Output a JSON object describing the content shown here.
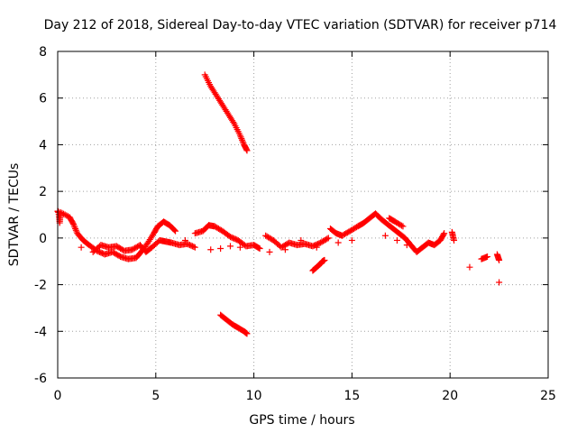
{
  "chart_data": {
    "type": "scatter",
    "title": "Day 212 of 2018, Sidereal Day-to-day VTEC variation (SDTVAR) for receiver p714",
    "xlabel": "GPS time / hours",
    "ylabel": "SDTVAR / TECUs",
    "xlim": [
      0,
      25
    ],
    "ylim": [
      -6,
      8
    ],
    "xticks": [
      0,
      5,
      10,
      15,
      20,
      25
    ],
    "yticks": [
      -6,
      -4,
      -2,
      0,
      2,
      4,
      6,
      8
    ],
    "grid": true,
    "marker": "+",
    "series": [
      {
        "name": "SDTVAR",
        "color": "#ff0000",
        "points": [
          [
            0.0,
            1.15
          ],
          [
            0.05,
            1.1
          ],
          [
            0.1,
            0.65
          ],
          [
            0.15,
            1.1
          ],
          [
            0.6,
            0.9
          ],
          [
            0.8,
            0.6
          ],
          [
            1.0,
            0.2
          ],
          [
            1.3,
            -0.1
          ],
          [
            1.6,
            -0.3
          ],
          [
            2.0,
            -0.55
          ],
          [
            2.4,
            -0.7
          ],
          [
            2.8,
            -0.6
          ],
          [
            3.2,
            -0.8
          ],
          [
            3.6,
            -0.9
          ],
          [
            4.0,
            -0.85
          ],
          [
            4.3,
            -0.55
          ],
          [
            4.6,
            -0.2
          ],
          [
            4.9,
            0.2
          ],
          [
            5.1,
            0.5
          ],
          [
            5.4,
            0.7
          ],
          [
            5.7,
            0.55
          ],
          [
            6.0,
            0.3
          ],
          [
            1.2,
            -0.4
          ],
          [
            1.8,
            -0.6
          ],
          [
            2.2,
            -0.3
          ],
          [
            2.6,
            -0.4
          ],
          [
            3.0,
            -0.35
          ],
          [
            3.4,
            -0.55
          ],
          [
            3.8,
            -0.5
          ],
          [
            4.2,
            -0.3
          ],
          [
            4.5,
            -0.6
          ],
          [
            4.8,
            -0.4
          ],
          [
            5.2,
            -0.1
          ],
          [
            5.5,
            -0.15
          ],
          [
            5.8,
            -0.2
          ],
          [
            6.2,
            -0.3
          ],
          [
            6.6,
            -0.25
          ],
          [
            7.0,
            -0.4
          ],
          [
            6.5,
            -0.1
          ],
          [
            7.0,
            0.2
          ],
          [
            7.4,
            0.3
          ],
          [
            7.7,
            0.55
          ],
          [
            8.0,
            0.5
          ],
          [
            8.4,
            0.3
          ],
          [
            8.8,
            0.05
          ],
          [
            9.2,
            -0.1
          ],
          [
            9.6,
            -0.35
          ],
          [
            10.0,
            -0.3
          ],
          [
            10.3,
            -0.45
          ],
          [
            7.8,
            -0.5
          ],
          [
            8.3,
            -0.45
          ],
          [
            8.8,
            -0.35
          ],
          [
            9.3,
            -0.4
          ],
          [
            10.6,
            0.1
          ],
          [
            11.0,
            -0.1
          ],
          [
            11.4,
            -0.4
          ],
          [
            11.8,
            -0.2
          ],
          [
            12.2,
            -0.3
          ],
          [
            12.6,
            -0.25
          ],
          [
            13.0,
            -0.35
          ],
          [
            13.4,
            -0.2
          ],
          [
            13.8,
            0.0
          ],
          [
            10.8,
            -0.6
          ],
          [
            11.6,
            -0.5
          ],
          [
            12.4,
            -0.1
          ],
          [
            13.2,
            -0.4
          ],
          [
            13.9,
            0.4
          ],
          [
            14.2,
            0.2
          ],
          [
            14.5,
            0.1
          ],
          [
            14.9,
            0.3
          ],
          [
            15.3,
            0.5
          ],
          [
            15.6,
            0.65
          ],
          [
            15.9,
            0.85
          ],
          [
            16.2,
            1.05
          ],
          [
            16.5,
            0.8
          ],
          [
            16.8,
            0.6
          ],
          [
            17.1,
            0.4
          ],
          [
            17.4,
            0.2
          ],
          [
            17.7,
            0.0
          ],
          [
            18.0,
            -0.3
          ],
          [
            18.3,
            -0.6
          ],
          [
            18.6,
            -0.4
          ],
          [
            18.9,
            -0.2
          ],
          [
            19.2,
            -0.3
          ],
          [
            19.5,
            -0.1
          ],
          [
            19.7,
            0.2
          ],
          [
            14.3,
            -0.2
          ],
          [
            15.0,
            -0.1
          ],
          [
            16.7,
            0.1
          ],
          [
            17.3,
            -0.1
          ],
          [
            17.8,
            -0.3
          ],
          [
            16.9,
            0.85
          ],
          [
            17.2,
            0.7
          ],
          [
            17.6,
            0.5
          ],
          [
            20.1,
            0.25
          ],
          [
            20.2,
            -0.1
          ],
          [
            21.0,
            -1.25
          ],
          [
            21.6,
            -0.9
          ],
          [
            21.9,
            -0.8
          ],
          [
            22.4,
            -0.7
          ],
          [
            22.5,
            -0.95
          ],
          [
            22.5,
            -1.9
          ],
          [
            7.5,
            7.0
          ],
          [
            7.8,
            6.5
          ],
          [
            8.1,
            6.1
          ],
          [
            8.4,
            5.7
          ],
          [
            8.7,
            5.3
          ],
          [
            9.0,
            4.9
          ],
          [
            9.3,
            4.4
          ],
          [
            9.5,
            4.0
          ],
          [
            9.65,
            3.75
          ],
          [
            8.3,
            -3.3
          ],
          [
            8.6,
            -3.5
          ],
          [
            8.9,
            -3.7
          ],
          [
            9.2,
            -3.85
          ],
          [
            9.5,
            -4.0
          ],
          [
            9.65,
            -4.1
          ],
          [
            13.0,
            -1.4
          ],
          [
            13.2,
            -1.25
          ],
          [
            13.4,
            -1.1
          ],
          [
            13.5,
            -1.0
          ],
          [
            13.6,
            -0.95
          ]
        ]
      }
    ]
  }
}
